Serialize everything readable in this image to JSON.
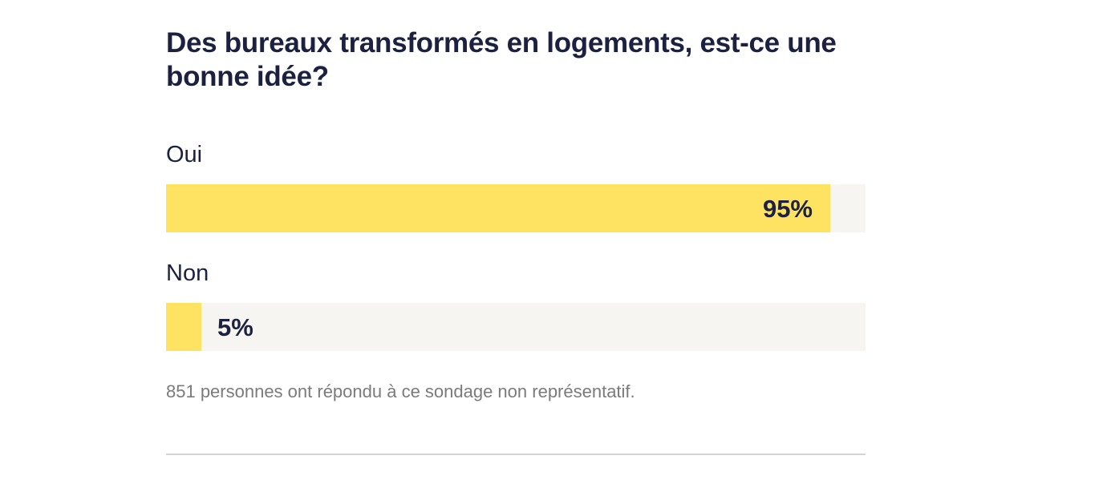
{
  "poll": {
    "question": "Des bureaux transformés en logements, est-ce une bonne idée?",
    "options": [
      {
        "label": "Oui",
        "percent_label": "95%",
        "share": 0.95
      },
      {
        "label": "Non",
        "percent_label": "5%",
        "share": 0.05
      }
    ],
    "note": "851 personnes ont répondu à ce sondage non représentatif."
  },
  "colors": {
    "text": "#1c2140",
    "bar_fill": "#fee262",
    "bar_track": "#f6f5f2",
    "note_text": "#7b7b7b",
    "divider": "#d4d4d4"
  }
}
